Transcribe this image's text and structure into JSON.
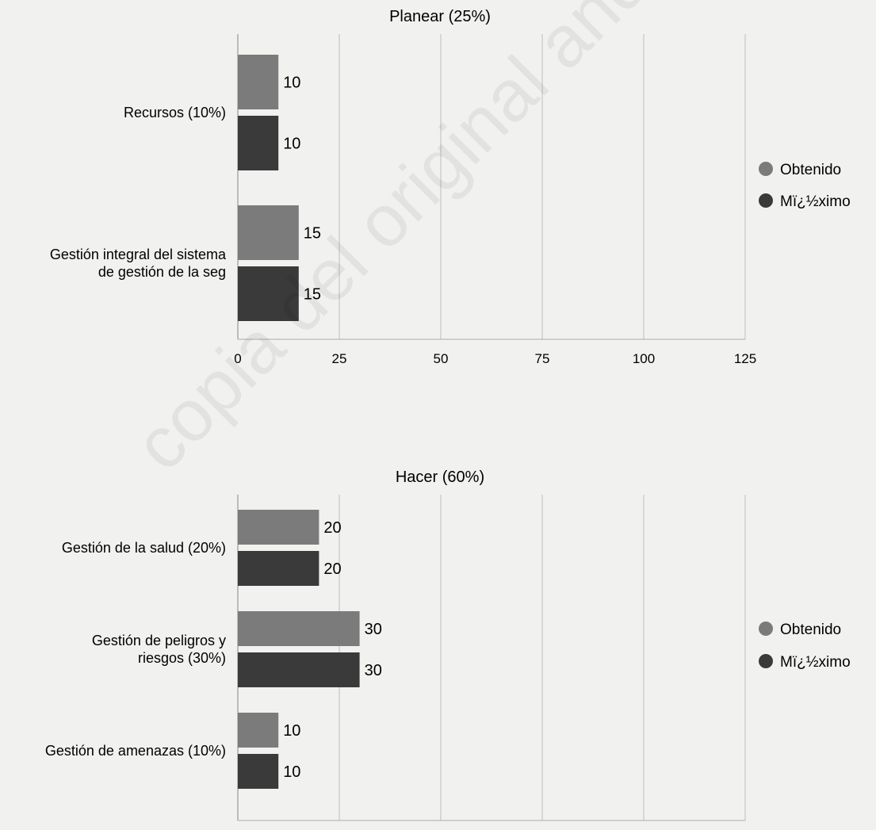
{
  "chart_data": [
    {
      "type": "bar",
      "orientation": "horizontal",
      "title": "Planear (25%)",
      "categories": [
        [
          "Recursos (10%)"
        ],
        [
          "Gestión integral del sistema",
          "de gestión de la seg"
        ]
      ],
      "series": [
        {
          "name": "Obtenido",
          "values": [
            10,
            15
          ],
          "color": "#7b7b7b"
        },
        {
          "name": "Mï¿½ximo",
          "values": [
            10,
            15
          ],
          "color": "#3a3a3a"
        }
      ],
      "xlim": [
        0,
        125
      ],
      "ticks": [
        0,
        25,
        50,
        75,
        100,
        125
      ],
      "grid": true,
      "legend": "right"
    },
    {
      "type": "bar",
      "orientation": "horizontal",
      "title": "Hacer (60%)",
      "categories": [
        [
          "Gestión de la salud (20%)"
        ],
        [
          "Gestión de peligros y",
          "riesgos (30%)"
        ],
        [
          "Gestión de amenazas (10%)"
        ]
      ],
      "series": [
        {
          "name": "Obtenido",
          "values": [
            20,
            30,
            10
          ],
          "color": "#7b7b7b"
        },
        {
          "name": "Mï¿½ximo",
          "values": [
            20,
            30,
            10
          ],
          "color": "#3a3a3a"
        }
      ],
      "xlim": [
        0,
        125
      ],
      "ticks": [
        0,
        25,
        50,
        75,
        100,
        125
      ],
      "grid": true,
      "legend": "right"
    }
  ],
  "watermark": "copia del original andres.izaquita"
}
